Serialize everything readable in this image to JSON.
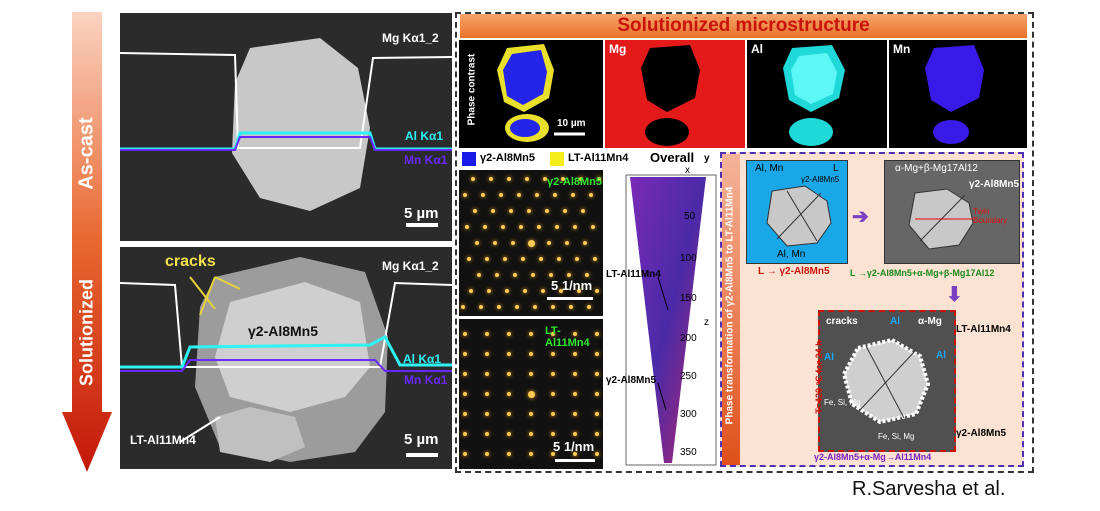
{
  "left_arrow": {
    "top_label": "As-cast",
    "bottom_label": "Solutionized",
    "colors": {
      "top": "#f5b49a",
      "bottom": "#c8220e"
    }
  },
  "sem_top": {
    "mg": "Mg Kα1_2",
    "al": "Al Kα1",
    "mn": "Mn Kα1",
    "scale": "5 µm"
  },
  "sem_bottom": {
    "mg": "Mg Kα1_2",
    "al": "Al Kα1",
    "mn": "Mn Kα1",
    "scale": "5 µm",
    "cracks": "cracks",
    "phase": "γ2-Al8Mn5",
    "lt": "LT-Al11Mn4"
  },
  "banner": {
    "title": "Solutionized microstructure",
    "color": "#e8722a"
  },
  "maps": {
    "phase_contrast": "Phase contrast",
    "scale": "10 µm",
    "mg": "Mg",
    "al": "Al",
    "mn": "Mn"
  },
  "legend": {
    "gamma": "γ2-Al8Mn5",
    "lt": "LT-Al11Mn4",
    "overall": "Overall"
  },
  "saed": {
    "top_label": "γ2-Al8Mn5",
    "top_scale": "5 1/nm",
    "bottom_label": "LT-Al11Mn4",
    "bottom_scale": "5 1/nm"
  },
  "apt": {
    "lt": "LT-Al11Mn4",
    "gamma": "γ2-Al8Mn5",
    "axis_ticks": [
      "50",
      "100",
      "150",
      "200",
      "250",
      "300",
      "350"
    ],
    "z": "z",
    "y": "y",
    "x": "x"
  },
  "schematic": {
    "vertical_title": "Phase transformation of γ2-Al8Mn5 to LT-Al11Mn4",
    "panel1": {
      "top": "Al, Mn",
      "L": "L",
      "gamma": "γ2-Al8Mn5",
      "bottom": "Al, Mn",
      "caption": "L → γ2-Al8Mn5"
    },
    "panel2": {
      "top": "α-Mg+β-Mg17Al12",
      "gamma": "γ2-Al8Mn5",
      "twin": "Twin Boundary",
      "caption": "L →γ2-Al8Mn5+α-Mg+β-Mg17Al12"
    },
    "panel3": {
      "cracks": "cracks",
      "amg": "α-Mg",
      "al1": "Al",
      "al2": "Al",
      "al3": "Al",
      "fe1": "Fe, Si, Mg",
      "fe2": "Fe, Si, Mg",
      "lt": "LT-Al11Mn4",
      "gamma": "γ2-Al8Mn5",
      "temp": "T=420 °C for 24 h",
      "caption": "γ2-Al8Mn5+α-Mg→Al11Mn4"
    }
  },
  "credit": "R.Sarvesha et al."
}
